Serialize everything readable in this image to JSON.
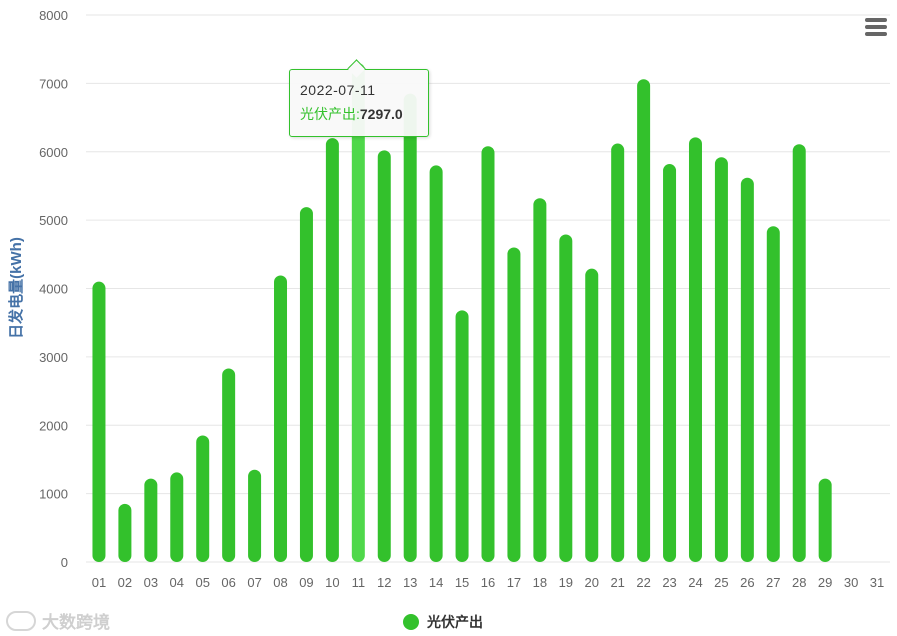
{
  "chart_data": {
    "type": "bar",
    "title": "",
    "ylabel": "日发电量(kWh)",
    "xlabel": "",
    "ylim": [
      0,
      8000
    ],
    "yticks": [
      "0",
      "1000",
      "2000",
      "3000",
      "4000",
      "5000",
      "6000",
      "7000",
      "8000"
    ],
    "categories": [
      "01",
      "02",
      "03",
      "04",
      "05",
      "06",
      "07",
      "08",
      "09",
      "10",
      "11",
      "12",
      "13",
      "14",
      "15",
      "16",
      "17",
      "18",
      "19",
      "20",
      "21",
      "22",
      "23",
      "24",
      "25",
      "26",
      "27",
      "28",
      "29",
      "30",
      "31"
    ],
    "series": [
      {
        "name": "光伏产出",
        "color": "#33c12c",
        "values": [
          4100,
          850,
          1220,
          1310,
          1850,
          2830,
          1350,
          4190,
          5190,
          6200,
          7297.0,
          6020,
          6850,
          5800,
          3680,
          6080,
          4600,
          5320,
          4790,
          4290,
          6120,
          7060,
          5820,
          6210,
          5920,
          5620,
          4910,
          6110,
          1220,
          null,
          null
        ]
      }
    ],
    "highlight_color": "#4fd84a",
    "grid": true,
    "legend_position": "bottom-center"
  },
  "tooltip": {
    "date": "2022-07-11",
    "series_label": "光伏产出:",
    "value": "7297.0"
  },
  "legend": {
    "label": "光伏产出"
  },
  "watermark": {
    "text": "大数跨境"
  },
  "menu_icon": "hamburger-menu-icon"
}
